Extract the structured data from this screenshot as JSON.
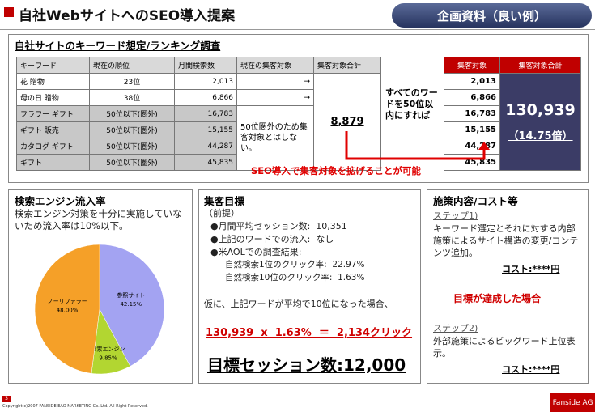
{
  "header": {
    "title": "自社WebサイトへのSEO導入提案",
    "badge": "企画資料（良い例）"
  },
  "ranking": {
    "heading": "自社サイトのキーワード想定/ランキング調査",
    "columns": [
      "キーワード",
      "現在の順位",
      "月間検索数",
      "現在の集客対象",
      "集客対象合計"
    ],
    "rows": [
      [
        "花 贈物",
        "23位",
        "2,013",
        "→"
      ],
      [
        "母の日 贈物",
        "38位",
        "6,866",
        "→"
      ],
      [
        "フラワー ギフト",
        "50位以下(圏外)",
        "16,783"
      ],
      [
        "ギフト 販売",
        "50位以下(圏外)",
        "15,155"
      ],
      [
        "カタログ ギフト",
        "50位以下(圏外)",
        "44,287"
      ],
      [
        "ギフト",
        "50位以下(圏外)",
        "45,835"
      ]
    ],
    "excluded_note": "50位圏外のため集客対象とはしない。",
    "current_total": "8,879",
    "condition": "すべてのワードを50位以内にすれば",
    "target_columns": [
      "集客対象",
      "集客対象合計"
    ],
    "target_values": [
      "2,013",
      "6,866",
      "16,783",
      "15,155",
      "44,287",
      "45,835"
    ],
    "target_total": "130,939",
    "ratio": "（14.75倍）",
    "callout": "SEO導入で集客対象を拡げることが可能"
  },
  "inflow": {
    "heading": "検索エンジン流入率",
    "text": "検索エンジン対策を十分に実施していないため流入率は10%以下。",
    "pie": {
      "slices": [
        {
          "label": "参照サイト",
          "value": 42.15,
          "value_label": "42.15%",
          "color": "#a3a3f2"
        },
        {
          "label": "検索エンジン",
          "value": 9.85,
          "value_label": "9.85%",
          "color": "#b2d631"
        },
        {
          "label": "ノーリファラー",
          "value": 48.0,
          "value_label": "48.00%",
          "color": "#f5a028"
        }
      ]
    }
  },
  "goal": {
    "heading": "集客目標",
    "premise": "（前提）",
    "bullets": [
      "●月間平均セッション数:  10,351",
      "●上記のワードでの流入:  なし",
      "●米AOLでの調査結果:"
    ],
    "sub_items": [
      "自然検索1位のクリック率:  22.97%",
      "自然検索10位のクリック率:  1.63%"
    ],
    "assumption": "仮に、上記ワードが平均で10位になった場合、",
    "formula": "130,939  x  1.63%  ＝  2,134クリック",
    "target": "目標セッション数:12,000"
  },
  "plan": {
    "heading": "施策内容/コスト等",
    "step1": "ステップ1)",
    "step1_text": "キーワード選定とそれに対する内部施策によるサイト構造の変更/コンテンツ追加。",
    "cost1": "コスト:****円",
    "achieved": "目標が達成した場合",
    "step2": "ステップ2)",
    "step2_text": "外部施策によるビッグワード上位表示。",
    "cost2": "コスト:****円"
  },
  "footer": {
    "page": "3",
    "copyright": "Copyright(c)2007 FANSIDE EAO MARKETING Co.,Ltd. All Right Reserved.",
    "brand": "Fanside AG"
  }
}
